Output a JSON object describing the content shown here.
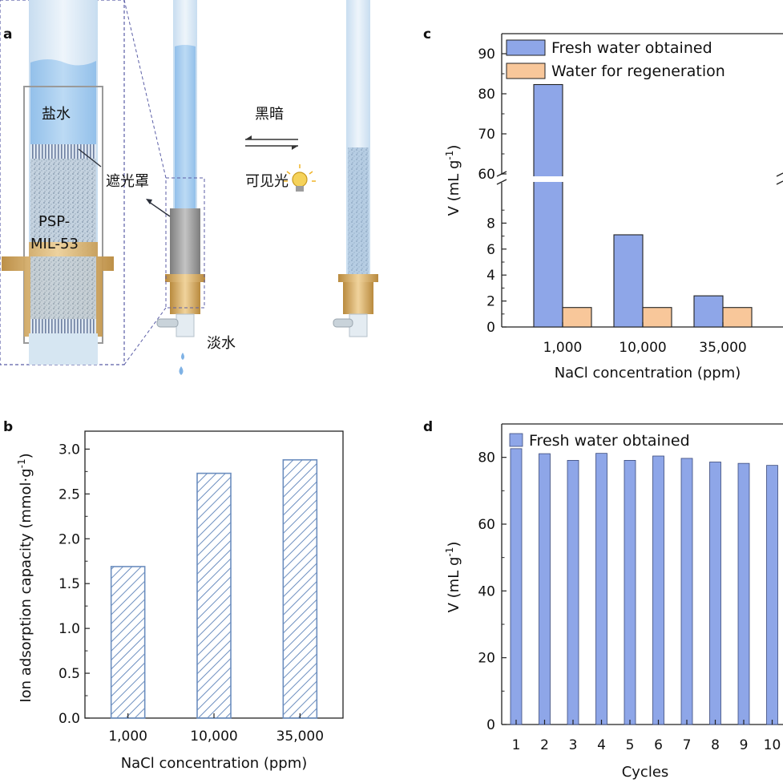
{
  "panels": [
    {
      "letter": "a",
      "illustration": {
        "labels": {
          "salt_water": "盐水",
          "material_line1": "PSP-",
          "material_line2": "MIL-53",
          "light_shield": "遮光罩",
          "fresh_water": "淡水",
          "dark": "黑暗",
          "visible_light": "可见光"
        },
        "colors": {
          "water_blue": "#a9cdee",
          "tube_glass": "#d9e8f5",
          "shield_gray": "#9a9a9a",
          "brass": "#d8b06a",
          "dashed_outline": "#5b5ea6",
          "bulb": "#f5d25a"
        }
      }
    },
    {
      "letter": "b"
    },
    {
      "letter": "c"
    },
    {
      "letter": "d"
    }
  ],
  "chart_data": [
    {
      "panel": "b",
      "type": "bar",
      "categories": [
        "1,000",
        "10,000",
        "35,000"
      ],
      "series": [
        {
          "values": [
            1.69,
            2.73,
            2.88
          ],
          "color": "#6c8ebf",
          "pattern": "hatched"
        }
      ],
      "xlabel": "NaCl concentration (ppm)",
      "ylabel": "Ion adsorption capacity (mmol·g",
      "ylabel_sup": "-1",
      "ylabel_close": ")",
      "ylim": [
        0,
        3.2
      ],
      "yticks": [
        "0.0",
        "0.5",
        "1.0",
        "1.5",
        "2.0",
        "2.5",
        "3.0"
      ],
      "grid": false
    },
    {
      "panel": "c",
      "type": "bar",
      "categories": [
        "1,000",
        "10,000",
        "35,000"
      ],
      "series": [
        {
          "name": "Fresh water obtained",
          "values": [
            82.3,
            7.1,
            2.4
          ],
          "color": "#8ea6e8"
        },
        {
          "name": "Water for regeneration",
          "values": [
            1.5,
            1.5,
            1.5
          ],
          "color": "#f8c79a"
        }
      ],
      "xlabel": "NaCl concentration (ppm)",
      "ylabel": "V (mL g",
      "ylabel_sup": "-1",
      "ylabel_close": ")",
      "axis_break": {
        "lower": [
          0,
          10
        ],
        "upper": [
          59,
          95
        ]
      },
      "yticks_lower": [
        "0",
        "2",
        "4",
        "6",
        "8"
      ],
      "yticks_upper": [
        "60",
        "70",
        "80",
        "90"
      ],
      "legend": "top-left",
      "grid": false
    },
    {
      "panel": "d",
      "type": "bar",
      "categories": [
        "1",
        "2",
        "3",
        "4",
        "5",
        "6",
        "7",
        "8",
        "9",
        "10"
      ],
      "series": [
        {
          "name": "Fresh water obtained",
          "values": [
            82.6,
            81.1,
            79.1,
            81.2,
            79.1,
            80.4,
            79.7,
            78.6,
            78.2,
            77.6
          ],
          "color": "#8ea6e8"
        }
      ],
      "xlabel": "Cycles",
      "ylabel": "V (mL g",
      "ylabel_sup": "-1",
      "ylabel_close": ")",
      "ylim": [
        0,
        90
      ],
      "yticks": [
        "0",
        "20",
        "40",
        "60",
        "80"
      ],
      "legend": "top-left",
      "grid": false
    }
  ]
}
